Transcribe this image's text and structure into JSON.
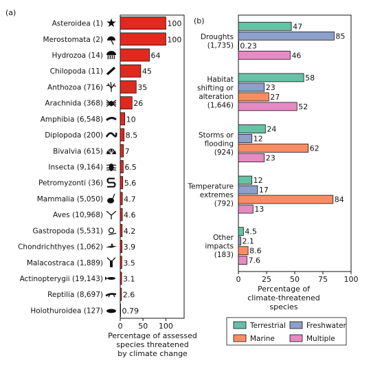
{
  "chart_data": [
    {
      "panel_label": "(a)",
      "type": "bar",
      "orientation": "horizontal",
      "categories": [
        "Asteroidea (1)",
        "Merostomata (2)",
        "Hydrozoa (14)",
        "Chilopoda (11)",
        "Anthozoa (716)",
        "Arachnida (368)",
        "Amphibia (6,548)",
        "Diplopoda (200)",
        "Bivalvia (615)",
        "Insecta (9,164)",
        "Petromyzonti (36)",
        "Mammalia (5,050)",
        "Aves (10,968)",
        "Gastropoda (5,531)",
        "Chondrichthyes (1,062)",
        "Malacostraca (1,889)",
        "Actinopterygii (19,143)",
        "Reptilia (8,697)",
        "Holothuroidea (127)"
      ],
      "values": [
        100,
        100,
        64,
        45,
        35,
        26,
        10,
        8.5,
        7,
        6.5,
        5.6,
        4.7,
        4.6,
        4.2,
        3.9,
        3.5,
        3.1,
        2.6,
        0.79
      ],
      "value_labels": [
        "100",
        "100",
        "64",
        "45",
        "35",
        "26",
        "10",
        "8.5",
        "7",
        "6.5",
        "5.6",
        "4.7",
        "4.6",
        "4.2",
        "3.9",
        "3.5",
        "3.1",
        "2.6",
        "0.79"
      ],
      "icons": [
        "starfish-icon",
        "horseshoe-crab-icon",
        "jellyfish-icon",
        "centipede-icon",
        "coral-icon",
        "spider-icon",
        "salamander-icon",
        "millipede-icon",
        "clam-shell-icon",
        "beetle-icon",
        "lamprey-icon",
        "rabbit-icon",
        "bird-icon",
        "snail-icon",
        "shark-icon",
        "lobster-icon",
        "fish-icon",
        "lizard-icon",
        "sea-cucumber-icon"
      ],
      "bar_color": "#e0291f",
      "xlabel": "Percentage of assessed\nspecies threatened\nby climate change",
      "xticks": [
        "0",
        "50",
        "100"
      ],
      "xlim": [
        0,
        140
      ]
    },
    {
      "panel_label": "(b)",
      "type": "bar",
      "orientation": "horizontal",
      "categories": [
        "Droughts\n(1,735)",
        "Habitat\nshifting or\nalteration\n(1,646)",
        "Storms or\nflooding\n(924)",
        "Temperature\nextremes\n(792)",
        "Other\nimpacts\n(183)"
      ],
      "series": [
        {
          "name": "Terrestrial",
          "color": "#66c2a5",
          "values": [
            47,
            58,
            24,
            12,
            4.5
          ],
          "labels": [
            "47",
            "58",
            "24",
            "12",
            "4.5"
          ]
        },
        {
          "name": "Freshwater",
          "color": "#8da0cb",
          "values": [
            85,
            23,
            12,
            17,
            2.1
          ],
          "labels": [
            "85",
            "23",
            "12",
            "17",
            "2.1"
          ]
        },
        {
          "name": "Marine",
          "color": "#fc8d62",
          "values": [
            0.23,
            27,
            62,
            84,
            8.6
          ],
          "labels": [
            "0.23",
            "27",
            "62",
            "84",
            "8.6"
          ]
        },
        {
          "name": "Multiple",
          "color": "#e78ac3",
          "values": [
            46,
            52,
            23,
            13,
            7.6
          ],
          "labels": [
            "46",
            "52",
            "23",
            "13",
            "7.6"
          ]
        }
      ],
      "xlabel": "Percentage of\nclimate-threatened\nspecies",
      "xticks": [
        "0",
        "25",
        "50",
        "75",
        "100"
      ],
      "xlim": [
        0,
        100
      ],
      "legend": {
        "placement": "bottom",
        "entries": [
          "Terrestrial",
          "Freshwater",
          "Marine",
          "Multiple"
        ]
      }
    }
  ]
}
